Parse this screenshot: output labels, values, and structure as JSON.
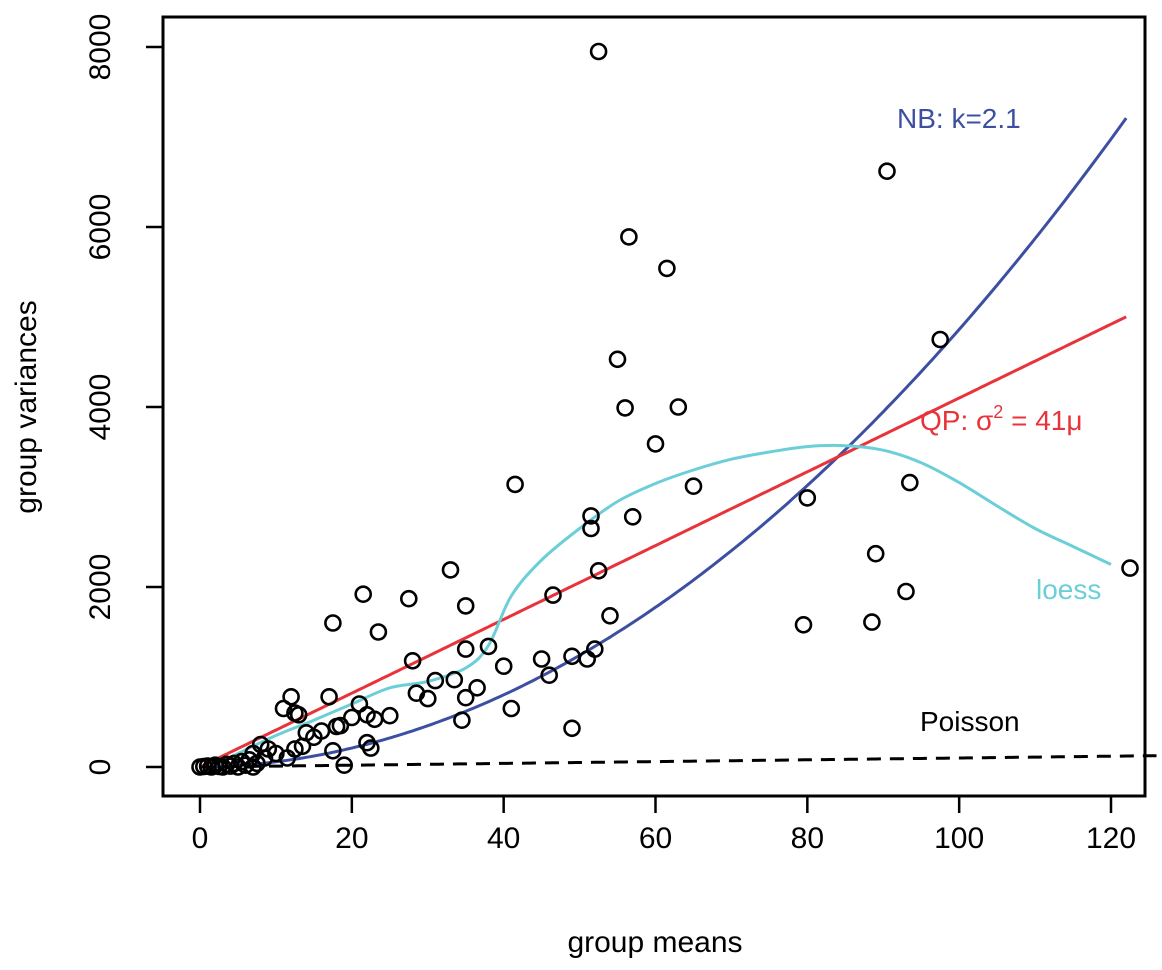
{
  "chart_data": {
    "type": "scatter",
    "xlabel": "group means",
    "ylabel": "group variances",
    "xlim": [
      -10,
      126
    ],
    "ylim": [
      -300,
      8400
    ],
    "x_ticks": [
      0,
      20,
      40,
      60,
      80,
      100,
      120
    ],
    "y_ticks": [
      0,
      2000,
      4000,
      6000,
      8000
    ],
    "x_tick_labels": [
      "0",
      "20",
      "40",
      "60",
      "80",
      "100",
      "120"
    ],
    "y_tick_labels": [
      "0",
      "2000",
      "4000",
      "6000",
      "8000"
    ],
    "grid": false,
    "points": [
      [
        0,
        0
      ],
      [
        0.5,
        5
      ],
      [
        1,
        10
      ],
      [
        1.5,
        0
      ],
      [
        2,
        20
      ],
      [
        2.5,
        5
      ],
      [
        3,
        0
      ],
      [
        3.5,
        30
      ],
      [
        4,
        10
      ],
      [
        4.5,
        40
      ],
      [
        5,
        0
      ],
      [
        5.5,
        60
      ],
      [
        6,
        20
      ],
      [
        6.5,
        80
      ],
      [
        7,
        0
      ],
      [
        7,
        150
      ],
      [
        7.5,
        40
      ],
      [
        8,
        250
      ],
      [
        8.5,
        100
      ],
      [
        9,
        200
      ],
      [
        10,
        150
      ],
      [
        11,
        650
      ],
      [
        11.5,
        100
      ],
      [
        12,
        780
      ],
      [
        12.5,
        200
      ],
      [
        12.5,
        600
      ],
      [
        13,
        580
      ],
      [
        13.5,
        230
      ],
      [
        14,
        380
      ],
      [
        15,
        330
      ],
      [
        16,
        400
      ],
      [
        17,
        780
      ],
      [
        17.5,
        180
      ],
      [
        17.5,
        1600
      ],
      [
        18,
        450
      ],
      [
        18.5,
        460
      ],
      [
        19,
        20
      ],
      [
        20,
        550
      ],
      [
        21,
        700
      ],
      [
        21.5,
        1920
      ],
      [
        22,
        580
      ],
      [
        22,
        270
      ],
      [
        22.5,
        210
      ],
      [
        23,
        530
      ],
      [
        23.5,
        1500
      ],
      [
        25,
        570
      ],
      [
        27.5,
        1870
      ],
      [
        28,
        1180
      ],
      [
        28.5,
        820
      ],
      [
        30,
        760
      ],
      [
        31,
        960
      ],
      [
        33,
        2190
      ],
      [
        33.5,
        970
      ],
      [
        34.5,
        520
      ],
      [
        35,
        770
      ],
      [
        35,
        1310
      ],
      [
        35,
        1790
      ],
      [
        36.5,
        880
      ],
      [
        38,
        1340
      ],
      [
        40,
        1120
      ],
      [
        41,
        650
      ],
      [
        41.5,
        3140
      ],
      [
        45,
        1200
      ],
      [
        46,
        1020
      ],
      [
        46.5,
        1910
      ],
      [
        49,
        430
      ],
      [
        49,
        1230
      ],
      [
        51,
        1200
      ],
      [
        51.5,
        2650
      ],
      [
        51.5,
        2790
      ],
      [
        52,
        1310
      ],
      [
        52.5,
        2180
      ],
      [
        52.5,
        7950
      ],
      [
        54,
        1680
      ],
      [
        55,
        4530
      ],
      [
        56,
        3990
      ],
      [
        56.5,
        5890
      ],
      [
        57,
        2780
      ],
      [
        60,
        3590
      ],
      [
        61.5,
        5540
      ],
      [
        63,
        4000
      ],
      [
        65,
        3120
      ],
      [
        79.5,
        1580
      ],
      [
        80,
        2990
      ],
      [
        88.5,
        1610
      ],
      [
        89,
        2370
      ],
      [
        90.5,
        6620
      ],
      [
        93,
        1950
      ],
      [
        93.5,
        3160
      ],
      [
        97.5,
        4750
      ],
      [
        122.5,
        2210
      ]
    ],
    "series": [
      {
        "name": "NB: k=2.1",
        "color": "#3c4fa1",
        "formula": "mu + mu^2/2.1",
        "x_range": [
          0,
          122
        ]
      },
      {
        "name": "QP: σ² = 41μ",
        "color": "#e8333a",
        "formula": "41*mu",
        "x_range": [
          0,
          122
        ]
      },
      {
        "name": "loess",
        "color": "#6ccfd8",
        "x": [
          0,
          5,
          10,
          15,
          20,
          25,
          30,
          35,
          38,
          41,
          45,
          50,
          55,
          60,
          65,
          70,
          75,
          80,
          85,
          90,
          95,
          100,
          105,
          110,
          115,
          120
        ],
        "y": [
          -60,
          150,
          350,
          520,
          700,
          880,
          950,
          1100,
          1350,
          1900,
          2300,
          2650,
          2950,
          3150,
          3300,
          3420,
          3500,
          3560,
          3570,
          3520,
          3380,
          3160,
          2900,
          2650,
          2450,
          2250
        ]
      },
      {
        "name": "Poisson",
        "color": "#000000",
        "dashed": true,
        "formula": "mu",
        "x_range": [
          0,
          126
        ]
      }
    ],
    "annotations": {
      "nb": "NB: k=2.1",
      "qp_prefix": "QP: σ",
      "qp_sup": "2",
      "qp_suffix": " = 41μ",
      "loess": "loess",
      "poisson": "Poisson"
    }
  }
}
